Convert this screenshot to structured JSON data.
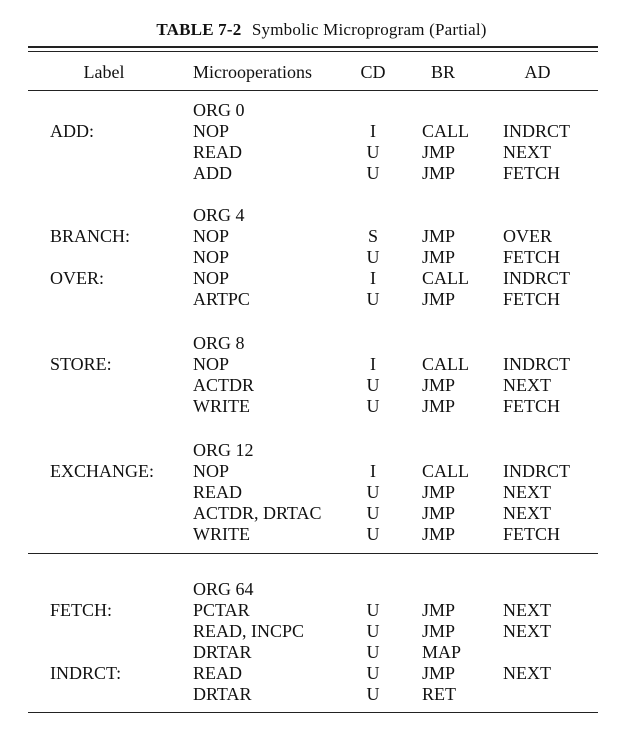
{
  "table": {
    "number": "TABLE 7-2",
    "title": "Symbolic Microprogram (Partial)",
    "headers": {
      "label": "Label",
      "micro": "Microoperations",
      "cd": "CD",
      "br": "BR",
      "ad": "AD"
    },
    "rows": [
      {
        "label": "",
        "micro": "ORG 0",
        "cd": "",
        "br": "",
        "ad": ""
      },
      {
        "label": "ADD:",
        "micro": "NOP",
        "cd": "I",
        "br": "CALL",
        "ad": "INDRCT"
      },
      {
        "label": "",
        "micro": "READ",
        "cd": "U",
        "br": "JMP",
        "ad": "NEXT"
      },
      {
        "label": "",
        "micro": "ADD",
        "cd": "U",
        "br": "JMP",
        "ad": "FETCH"
      },
      {
        "label": "",
        "micro": "ORG 4",
        "cd": "",
        "br": "",
        "ad": ""
      },
      {
        "label": "BRANCH:",
        "micro": "NOP",
        "cd": "S",
        "br": "JMP",
        "ad": "OVER"
      },
      {
        "label": "",
        "micro": "NOP",
        "cd": "U",
        "br": "JMP",
        "ad": "FETCH"
      },
      {
        "label": "OVER:",
        "micro": "NOP",
        "cd": "I",
        "br": "CALL",
        "ad": "INDRCT"
      },
      {
        "label": "",
        "micro": "ARTPC",
        "cd": "U",
        "br": "JMP",
        "ad": "FETCH"
      },
      {
        "label": "",
        "micro": "ORG 8",
        "cd": "",
        "br": "",
        "ad": ""
      },
      {
        "label": "STORE:",
        "micro": "NOP",
        "cd": "I",
        "br": "CALL",
        "ad": "INDRCT"
      },
      {
        "label": "",
        "micro": "ACTDR",
        "cd": "U",
        "br": "JMP",
        "ad": "NEXT"
      },
      {
        "label": "",
        "micro": "WRITE",
        "cd": "U",
        "br": "JMP",
        "ad": "FETCH"
      },
      {
        "label": "",
        "micro": "ORG 12",
        "cd": "",
        "br": "",
        "ad": ""
      },
      {
        "label": "EXCHANGE:",
        "micro": "NOP",
        "cd": "I",
        "br": "CALL",
        "ad": "INDRCT"
      },
      {
        "label": "",
        "micro": "READ",
        "cd": "U",
        "br": "JMP",
        "ad": "NEXT"
      },
      {
        "label": "",
        "micro": "ACTDR, DRTAC",
        "cd": "U",
        "br": "JMP",
        "ad": "NEXT"
      },
      {
        "label": "",
        "micro": "WRITE",
        "cd": "U",
        "br": "JMP",
        "ad": "FETCH"
      },
      {
        "label": "",
        "micro": "ORG 64",
        "cd": "",
        "br": "",
        "ad": ""
      },
      {
        "label": "FETCH:",
        "micro": "PCTAR",
        "cd": "U",
        "br": "JMP",
        "ad": "NEXT"
      },
      {
        "label": "",
        "micro": "READ, INCPC",
        "cd": "U",
        "br": "JMP",
        "ad": "NEXT"
      },
      {
        "label": "",
        "micro": "DRTAR",
        "cd": "U",
        "br": "MAP",
        "ad": ""
      },
      {
        "label": "INDRCT:",
        "micro": "READ",
        "cd": "U",
        "br": "JMP",
        "ad": "NEXT"
      },
      {
        "label": "",
        "micro": "DRTAR",
        "cd": "U",
        "br": "RET",
        "ad": ""
      }
    ]
  }
}
